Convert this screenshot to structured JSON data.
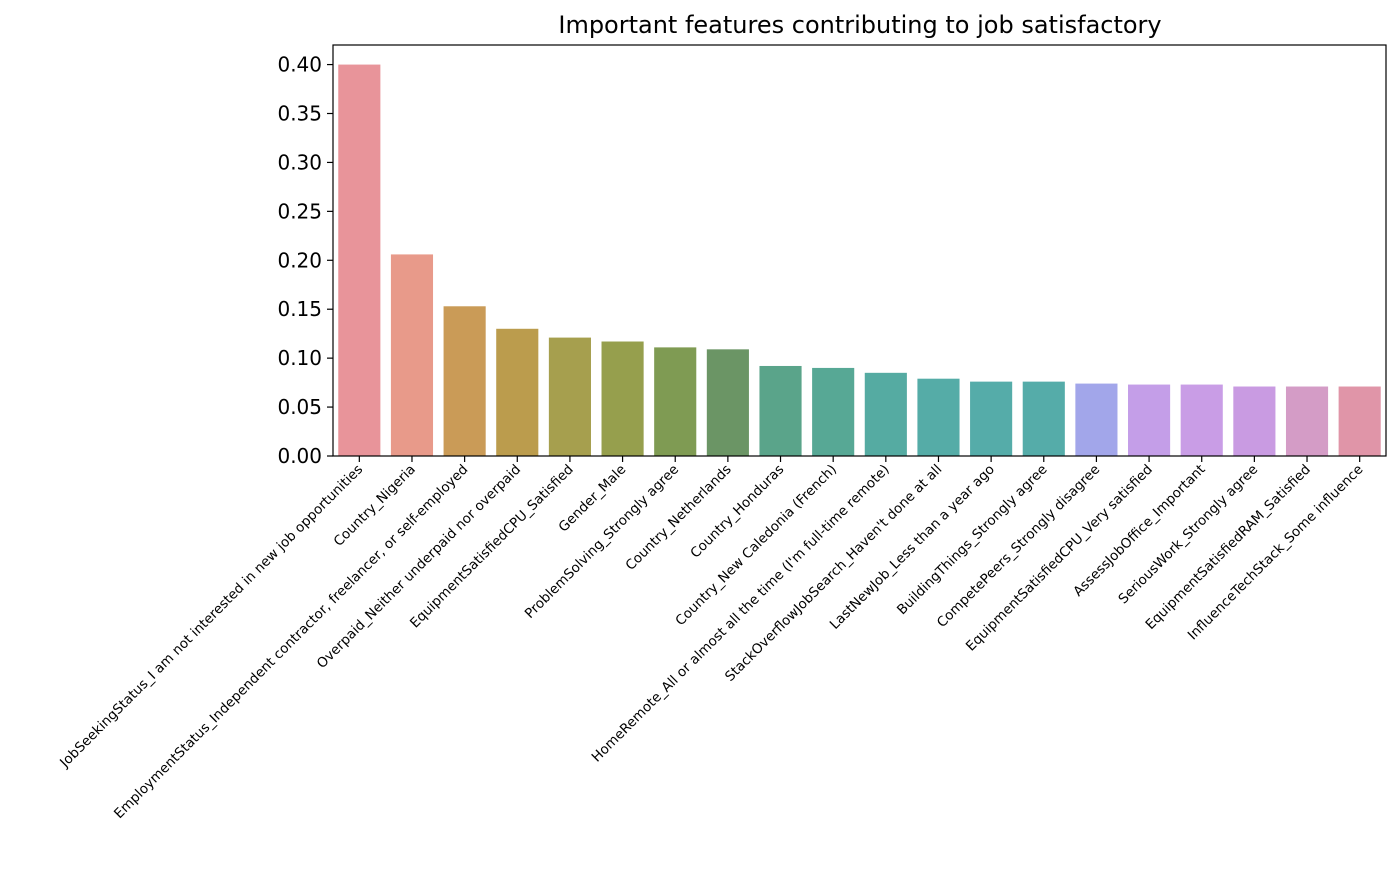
{
  "chart_data": {
    "type": "bar",
    "title": "Important features contributing to job satisfactory",
    "xlabel": "",
    "ylabel": "",
    "ylim": [
      0,
      0.42
    ],
    "yticks": [
      "0.00",
      "0.05",
      "0.10",
      "0.15",
      "0.20",
      "0.25",
      "0.30",
      "0.35",
      "0.40"
    ],
    "grid": false,
    "categories": [
      "JobSeekingStatus_I am not interested in new job opportunities",
      "Country_Nigeria",
      "EmploymentStatus_Independent contractor, freelancer, or self-employed",
      "Overpaid_Neither underpaid nor overpaid",
      "EquipmentSatisfiedCPU_Satisfied",
      "Gender_Male",
      "ProblemSolving_Strongly agree",
      "Country_Netherlands",
      "Country_Honduras",
      "Country_New Caledonia (French)",
      "HomeRemote_All or almost all the time (I'm full-time remote)",
      "StackOverflowJobSearch_Haven't done at all",
      "LastNewJob_Less than a year ago",
      "BuildingThings_Strongly agree",
      "CompetePeers_Strongly disagree",
      "EquipmentSatisfiedCPU_Very satisfied",
      "AssessJobOffice_Important",
      "SeriousWork_Strongly agree",
      "EquipmentSatisfiedRAM_Satisfied",
      "InfluenceTechStack_Some influence"
    ],
    "values": [
      0.4,
      0.206,
      0.153,
      0.13,
      0.121,
      0.117,
      0.111,
      0.109,
      0.092,
      0.09,
      0.085,
      0.079,
      0.076,
      0.076,
      0.074,
      0.073,
      0.073,
      0.071,
      0.071,
      0.071
    ],
    "colors": [
      "#e8949a",
      "#e89a8a",
      "#ca9b57",
      "#bb9c4d",
      "#a69f4e",
      "#969f4d",
      "#7f9b53",
      "#6b9565",
      "#5aa48a",
      "#57a895",
      "#55aba2",
      "#55aca7",
      "#55aca9",
      "#55aca9",
      "#a2a6ea",
      "#c49ee8",
      "#c99de6",
      "#c99be2",
      "#d49cc6",
      "#e095a8"
    ]
  }
}
